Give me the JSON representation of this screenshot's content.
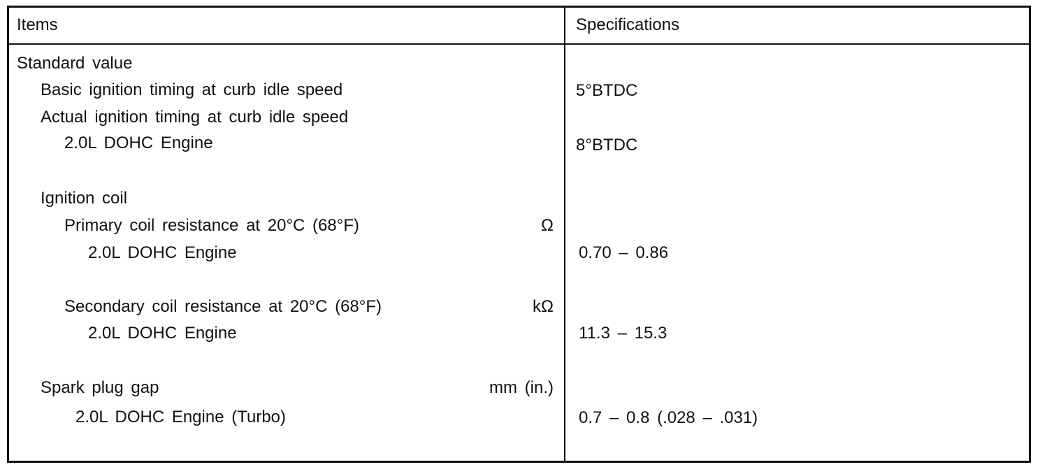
{
  "table": {
    "header": [
      "Items",
      "Specifications"
    ],
    "rows": [
      {
        "item": "Standard value"
      },
      {
        "item": "Basic ignition timing at curb idle speed",
        "spec": "5°BTDC"
      },
      {
        "item": "Actual ignition timing at curb idle speed"
      },
      {
        "item": "2.0L DOHC Engine",
        "spec": "8°BTDC"
      },
      {
        "item": "Ignition coil"
      },
      {
        "item": "Primary coil resistance at 20°C (68°F)",
        "unit": "Ω"
      },
      {
        "item": "2.0L DOHC Engine",
        "spec": "0.70 – 0.86"
      },
      {
        "item": "Secondary coil resistance at 20°C (68°F)",
        "unit": "kΩ"
      },
      {
        "item": "2.0L DOHC Engine",
        "spec": "11.3 – 15.3"
      },
      {
        "item": "Spark plug gap",
        "unit": "mm (in.)"
      },
      {
        "item": "2.0L DOHC Engine (Turbo)",
        "spec": "0.7 – 0.8 (.028 – .031)"
      }
    ]
  }
}
